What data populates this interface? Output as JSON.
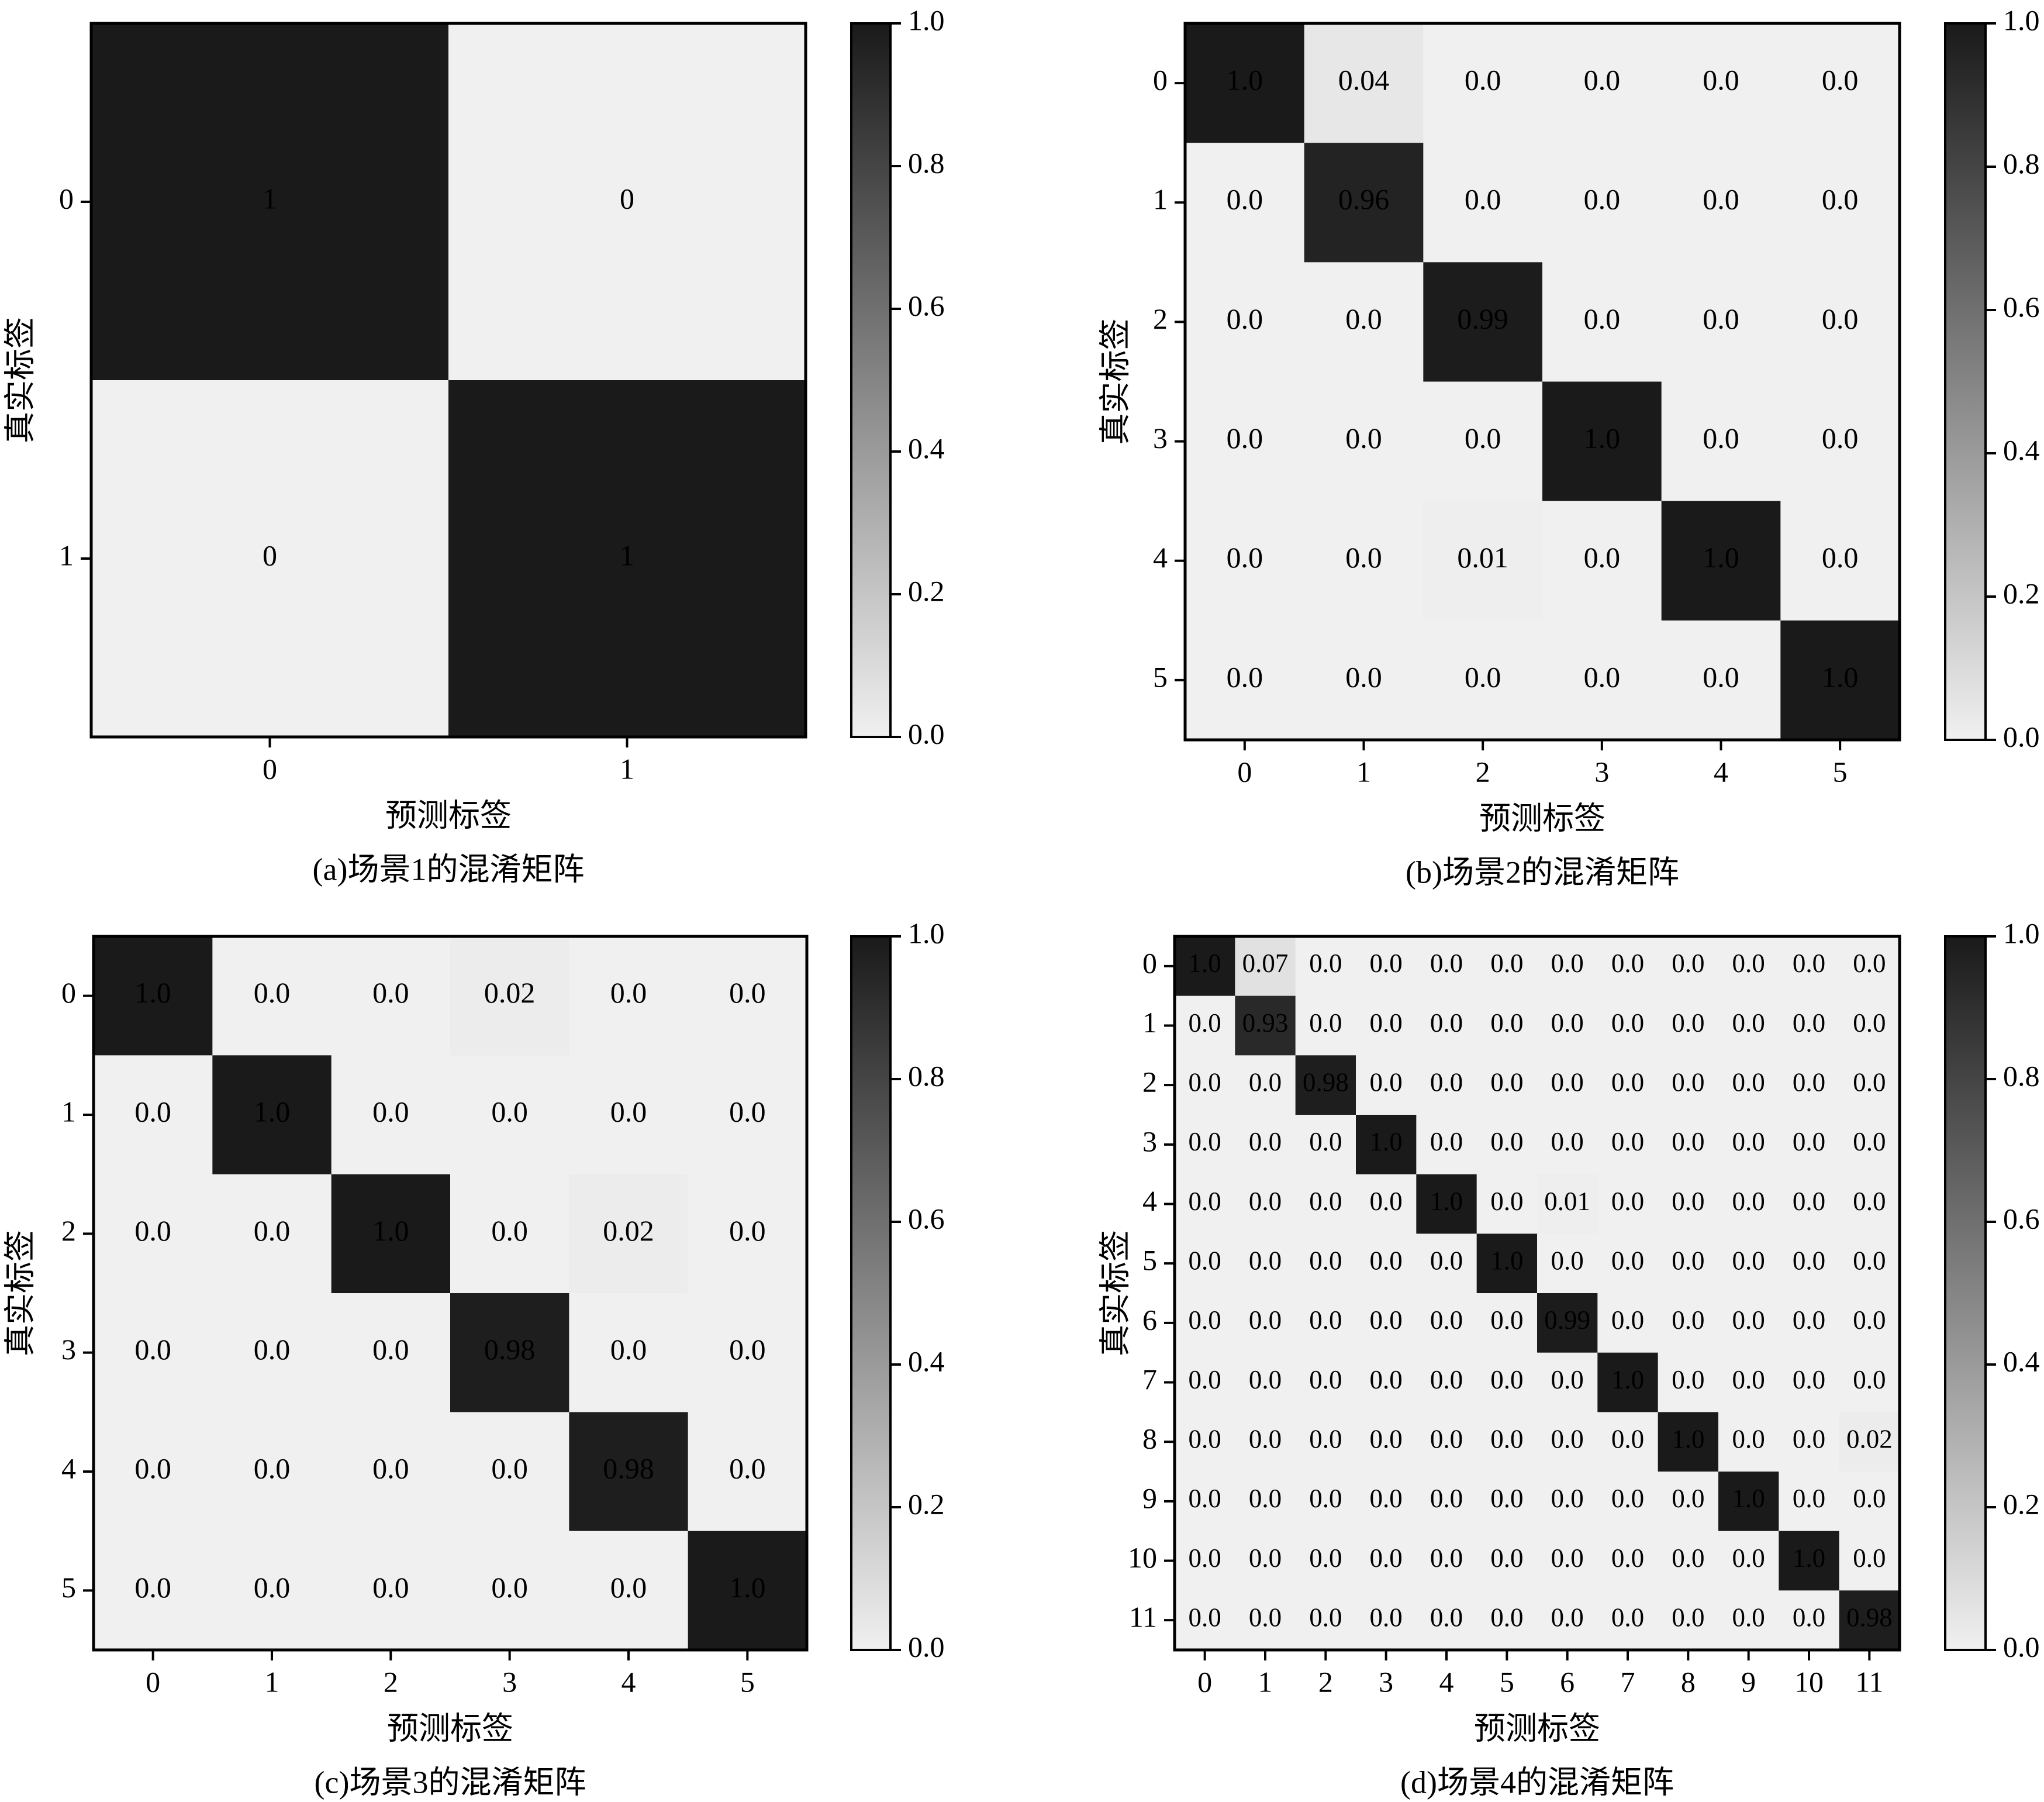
{
  "chart_data": [
    {
      "type": "heatmap",
      "caption": "(a)场景1的混淆矩阵",
      "xlabel": "预测标签",
      "ylabel": "真实标签",
      "x": [
        "0",
        "1"
      ],
      "y": [
        "0",
        "1"
      ],
      "values": [
        [
          1,
          0
        ],
        [
          0,
          1
        ]
      ],
      "cmap": [
        "#f0f0f0",
        "#1a1a1a"
      ],
      "clim": [
        0,
        1
      ],
      "cticks": [
        {
          "value": 0,
          "label": "0.0"
        },
        {
          "value": 0.2,
          "label": "0.2"
        },
        {
          "value": 0.4,
          "label": "0.4"
        },
        {
          "value": 0.6,
          "label": "0.6"
        },
        {
          "value": 0.8,
          "label": "0.8"
        },
        {
          "value": 1,
          "label": "1.0"
        }
      ]
    },
    {
      "type": "heatmap",
      "caption": "(b)场景2的混淆矩阵",
      "xlabel": "预测标签",
      "ylabel": "真实标签",
      "x": [
        "0",
        "1",
        "2",
        "3",
        "4",
        "5"
      ],
      "y": [
        "0",
        "1",
        "2",
        "3",
        "4",
        "5"
      ],
      "values": [
        [
          1,
          0.04,
          0,
          0,
          0,
          0
        ],
        [
          0,
          0.96,
          0,
          0,
          0,
          0
        ],
        [
          0,
          0,
          0.99,
          0,
          0,
          0
        ],
        [
          0,
          0,
          0,
          1,
          0,
          0
        ],
        [
          0,
          0,
          0.01,
          0,
          1,
          0
        ],
        [
          0,
          0,
          0,
          0,
          0,
          1
        ]
      ],
      "value_labels": [
        [
          "1.0",
          "0.04",
          "0.0",
          "0.0",
          "0.0",
          "0.0"
        ],
        [
          "0.0",
          "0.96",
          "0.0",
          "0.0",
          "0.0",
          "0.0"
        ],
        [
          "0.0",
          "0.0",
          "0.99",
          "0.0",
          "0.0",
          "0.0"
        ],
        [
          "0.0",
          "0.0",
          "0.0",
          "1.0",
          "0.0",
          "0.0"
        ],
        [
          "0.0",
          "0.0",
          "0.01",
          "0.0",
          "1.0",
          "0.0"
        ],
        [
          "0.0",
          "0.0",
          "0.0",
          "0.0",
          "0.0",
          "1.0"
        ]
      ],
      "cmap": [
        "#f0f0f0",
        "#1a1a1a"
      ],
      "clim": [
        0,
        1
      ],
      "cticks": [
        {
          "value": 0,
          "label": "0.0"
        },
        {
          "value": 0.2,
          "label": "0.2"
        },
        {
          "value": 0.4,
          "label": "0.4"
        },
        {
          "value": 0.6,
          "label": "0.6"
        },
        {
          "value": 0.8,
          "label": "0.8"
        },
        {
          "value": 1,
          "label": "1.0"
        }
      ]
    },
    {
      "type": "heatmap",
      "caption": "(c)场景3的混淆矩阵",
      "xlabel": "预测标签",
      "ylabel": "真实标签",
      "x": [
        "0",
        "1",
        "2",
        "3",
        "4",
        "5"
      ],
      "y": [
        "0",
        "1",
        "2",
        "3",
        "4",
        "5"
      ],
      "values": [
        [
          1,
          0,
          0,
          0.02,
          0,
          0
        ],
        [
          0,
          1,
          0,
          0,
          0,
          0
        ],
        [
          0,
          0,
          1,
          0,
          0.02,
          0
        ],
        [
          0,
          0,
          0,
          0.98,
          0,
          0
        ],
        [
          0,
          0,
          0,
          0,
          0.98,
          0
        ],
        [
          0,
          0,
          0,
          0,
          0,
          1
        ]
      ],
      "value_labels": [
        [
          "1.0",
          "0.0",
          "0.0",
          "0.02",
          "0.0",
          "0.0"
        ],
        [
          "0.0",
          "1.0",
          "0.0",
          "0.0",
          "0.0",
          "0.0"
        ],
        [
          "0.0",
          "0.0",
          "1.0",
          "0.0",
          "0.02",
          "0.0"
        ],
        [
          "0.0",
          "0.0",
          "0.0",
          "0.98",
          "0.0",
          "0.0"
        ],
        [
          "0.0",
          "0.0",
          "0.0",
          "0.0",
          "0.98",
          "0.0"
        ],
        [
          "0.0",
          "0.0",
          "0.0",
          "0.0",
          "0.0",
          "1.0"
        ]
      ],
      "cmap": [
        "#f0f0f0",
        "#1a1a1a"
      ],
      "clim": [
        0,
        1
      ],
      "cticks": [
        {
          "value": 0,
          "label": "0.0"
        },
        {
          "value": 0.2,
          "label": "0.2"
        },
        {
          "value": 0.4,
          "label": "0.4"
        },
        {
          "value": 0.6,
          "label": "0.6"
        },
        {
          "value": 0.8,
          "label": "0.8"
        },
        {
          "value": 1,
          "label": "1.0"
        }
      ]
    },
    {
      "type": "heatmap",
      "caption": "(d)场景4的混淆矩阵",
      "xlabel": "预测标签",
      "ylabel": "真实标签",
      "x": [
        "0",
        "1",
        "2",
        "3",
        "4",
        "5",
        "6",
        "7",
        "8",
        "9",
        "10",
        "11"
      ],
      "y": [
        "0",
        "1",
        "2",
        "3",
        "4",
        "5",
        "6",
        "7",
        "8",
        "9",
        "10",
        "11"
      ],
      "values": [
        [
          1,
          0.07,
          0,
          0,
          0,
          0,
          0,
          0,
          0,
          0,
          0,
          0
        ],
        [
          0,
          0.93,
          0,
          0,
          0,
          0,
          0,
          0,
          0,
          0,
          0,
          0
        ],
        [
          0,
          0,
          0.98,
          0,
          0,
          0,
          0,
          0,
          0,
          0,
          0,
          0
        ],
        [
          0,
          0,
          0,
          1,
          0,
          0,
          0,
          0,
          0,
          0,
          0,
          0
        ],
        [
          0,
          0,
          0,
          0,
          1,
          0,
          0.01,
          0,
          0,
          0,
          0,
          0
        ],
        [
          0,
          0,
          0,
          0,
          0,
          1,
          0,
          0,
          0,
          0,
          0,
          0
        ],
        [
          0,
          0,
          0,
          0,
          0,
          0,
          0.99,
          0,
          0,
          0,
          0,
          0
        ],
        [
          0,
          0,
          0,
          0,
          0,
          0,
          0,
          1,
          0,
          0,
          0,
          0
        ],
        [
          0,
          0,
          0,
          0,
          0,
          0,
          0,
          0,
          1,
          0,
          0,
          0.02
        ],
        [
          0,
          0,
          0,
          0,
          0,
          0,
          0,
          0,
          0,
          1,
          0,
          0
        ],
        [
          0,
          0,
          0,
          0,
          0,
          0,
          0,
          0,
          0,
          0,
          1,
          0
        ],
        [
          0,
          0,
          0,
          0,
          0,
          0,
          0,
          0,
          0,
          0,
          0,
          0.98
        ]
      ],
      "value_labels": [
        [
          "1.0",
          "0.07",
          "0.0",
          "0.0",
          "0.0",
          "0.0",
          "0.0",
          "0.0",
          "0.0",
          "0.0",
          "0.0",
          "0.0"
        ],
        [
          "0.0",
          "0.93",
          "0.0",
          "0.0",
          "0.0",
          "0.0",
          "0.0",
          "0.0",
          "0.0",
          "0.0",
          "0.0",
          "0.0"
        ],
        [
          "0.0",
          "0.0",
          "0.98",
          "0.0",
          "0.0",
          "0.0",
          "0.0",
          "0.0",
          "0.0",
          "0.0",
          "0.0",
          "0.0"
        ],
        [
          "0.0",
          "0.0",
          "0.0",
          "1.0",
          "0.0",
          "0.0",
          "0.0",
          "0.0",
          "0.0",
          "0.0",
          "0.0",
          "0.0"
        ],
        [
          "0.0",
          "0.0",
          "0.0",
          "0.0",
          "1.0",
          "0.0",
          "0.01",
          "0.0",
          "0.0",
          "0.0",
          "0.0",
          "0.0"
        ],
        [
          "0.0",
          "0.0",
          "0.0",
          "0.0",
          "0.0",
          "1.0",
          "0.0",
          "0.0",
          "0.0",
          "0.0",
          "0.0",
          "0.0"
        ],
        [
          "0.0",
          "0.0",
          "0.0",
          "0.0",
          "0.0",
          "0.0",
          "0.99",
          "0.0",
          "0.0",
          "0.0",
          "0.0",
          "0.0"
        ],
        [
          "0.0",
          "0.0",
          "0.0",
          "0.0",
          "0.0",
          "0.0",
          "0.0",
          "1.0",
          "0.0",
          "0.0",
          "0.0",
          "0.0"
        ],
        [
          "0.0",
          "0.0",
          "0.0",
          "0.0",
          "0.0",
          "0.0",
          "0.0",
          "0.0",
          "1.0",
          "0.0",
          "0.0",
          "0.02"
        ],
        [
          "0.0",
          "0.0",
          "0.0",
          "0.0",
          "0.0",
          "0.0",
          "0.0",
          "0.0",
          "0.0",
          "1.0",
          "0.0",
          "0.0"
        ],
        [
          "0.0",
          "0.0",
          "0.0",
          "0.0",
          "0.0",
          "0.0",
          "0.0",
          "0.0",
          "0.0",
          "0.0",
          "1.0",
          "0.0"
        ],
        [
          "0.0",
          "0.0",
          "0.0",
          "0.0",
          "0.0",
          "0.0",
          "0.0",
          "0.0",
          "0.0",
          "0.0",
          "0.0",
          "0.98"
        ]
      ],
      "cmap": [
        "#f0f0f0",
        "#1a1a1a"
      ],
      "clim": [
        0,
        1
      ],
      "cticks": [
        {
          "value": 0,
          "label": "0.0"
        },
        {
          "value": 0.2,
          "label": "0.2"
        },
        {
          "value": 0.4,
          "label": "0.4"
        },
        {
          "value": 0.6,
          "label": "0.6"
        },
        {
          "value": 0.8,
          "label": "0.8"
        },
        {
          "value": 1,
          "label": "1.0"
        }
      ]
    }
  ]
}
